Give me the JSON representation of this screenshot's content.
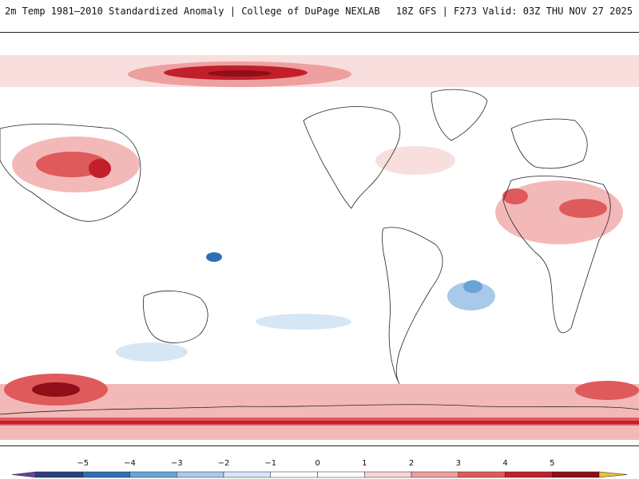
{
  "title": {
    "left": "2m Temp 1981–2010 Standardized Anomaly | College of DuPage NEXLAB",
    "right": "18Z GFS | F273 Valid: 03Z THU NOV 27 2025"
  },
  "map": {
    "variable": "2m Temperature Standardized Anomaly",
    "baseline": "1981–2010",
    "model": "GFS",
    "run": "18Z",
    "forecast_hour": "F273",
    "valid": "03Z THU NOV 27 2025"
  },
  "legend": {
    "ticks": [
      "−5",
      "−4",
      "−3",
      "−2",
      "−1",
      "0",
      "1",
      "2",
      "3",
      "4",
      "5"
    ],
    "colors": [
      "#6b3fa0",
      "#2b3f7a",
      "#2f6fb5",
      "#6aa3d8",
      "#a9c9ea",
      "#d6e6f5",
      "#ffffff",
      "#ffffff",
      "#f7d4d4",
      "#ee9f9f",
      "#df5a5a",
      "#c21f2a",
      "#8e0f18",
      "#f0c030"
    ]
  }
}
